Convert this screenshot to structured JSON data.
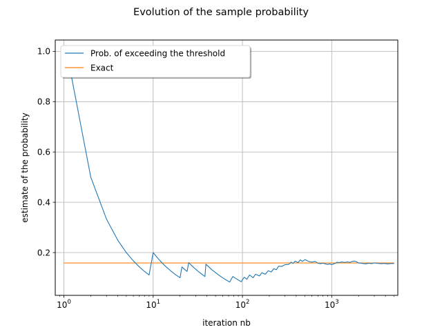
{
  "chart_data": {
    "type": "line",
    "title": "Evolution of the sample probability",
    "xlabel": "iteration nb",
    "ylabel": "estimate of the probability",
    "xscale": "log",
    "xlim": [
      0.8,
      5500
    ],
    "ylim": [
      0.03,
      1.045
    ],
    "grid": true,
    "legend_position": "top-left",
    "xticks": [
      {
        "value": 1,
        "base": "10",
        "exp": "0"
      },
      {
        "value": 10,
        "base": "10",
        "exp": "1"
      },
      {
        "value": 100,
        "base": "10",
        "exp": "2"
      },
      {
        "value": 1000,
        "base": "10",
        "exp": "3"
      }
    ],
    "yticks": [
      {
        "value": 0.2,
        "label": "0.2"
      },
      {
        "value": 0.4,
        "label": "0.4"
      },
      {
        "value": 0.6,
        "label": "0.6"
      },
      {
        "value": 0.8,
        "label": "0.8"
      },
      {
        "value": 1.0,
        "label": "1.0"
      }
    ],
    "series": [
      {
        "name": "Prob. of exceeding the threshold",
        "color": "#1f77b4",
        "points": [
          [
            1,
            0.91
          ],
          [
            1.2,
            0.91
          ],
          [
            2,
            0.5
          ],
          [
            3,
            0.333
          ],
          [
            4,
            0.25
          ],
          [
            5,
            0.2
          ],
          [
            6,
            0.167
          ],
          [
            7,
            0.143
          ],
          [
            8,
            0.125
          ],
          [
            9,
            0.111
          ],
          [
            10,
            0.2
          ],
          [
            11,
            0.182
          ],
          [
            12,
            0.167
          ],
          [
            13,
            0.154
          ],
          [
            14,
            0.143
          ],
          [
            16,
            0.125
          ],
          [
            18,
            0.111
          ],
          [
            20,
            0.1
          ],
          [
            21,
            0.143
          ],
          [
            23,
            0.13
          ],
          [
            24,
            0.125
          ],
          [
            25,
            0.16
          ],
          [
            28,
            0.143
          ],
          [
            32,
            0.125
          ],
          [
            36,
            0.111
          ],
          [
            38,
            0.105
          ],
          [
            39,
            0.154
          ],
          [
            45,
            0.133
          ],
          [
            55,
            0.109
          ],
          [
            65,
            0.092
          ],
          [
            72,
            0.083
          ],
          [
            78,
            0.105
          ],
          [
            88,
            0.093
          ],
          [
            97,
            0.084
          ],
          [
            99,
            0.09
          ],
          [
            105,
            0.102
          ],
          [
            112,
            0.094
          ],
          [
            120,
            0.111
          ],
          [
            132,
            0.1
          ],
          [
            140,
            0.114
          ],
          [
            155,
            0.107
          ],
          [
            165,
            0.12
          ],
          [
            180,
            0.114
          ],
          [
            195,
            0.128
          ],
          [
            210,
            0.123
          ],
          [
            225,
            0.136
          ],
          [
            240,
            0.132
          ],
          [
            255,
            0.146
          ],
          [
            275,
            0.145
          ],
          [
            300,
            0.152
          ],
          [
            330,
            0.153
          ],
          [
            350,
            0.162
          ],
          [
            370,
            0.157
          ],
          [
            390,
            0.166
          ],
          [
            420,
            0.16
          ],
          [
            445,
            0.171
          ],
          [
            470,
            0.165
          ],
          [
            500,
            0.172
          ],
          [
            530,
            0.168
          ],
          [
            560,
            0.164
          ],
          [
            600,
            0.162
          ],
          [
            650,
            0.165
          ],
          [
            700,
            0.158
          ],
          [
            750,
            0.156
          ],
          [
            800,
            0.158
          ],
          [
            850,
            0.155
          ],
          [
            900,
            0.153
          ],
          [
            950,
            0.155
          ],
          [
            1000,
            0.152
          ],
          [
            1050,
            0.155
          ],
          [
            1100,
            0.158
          ],
          [
            1150,
            0.162
          ],
          [
            1200,
            0.16
          ],
          [
            1300,
            0.163
          ],
          [
            1400,
            0.161
          ],
          [
            1500,
            0.163
          ],
          [
            1600,
            0.161
          ],
          [
            1700,
            0.165
          ],
          [
            1800,
            0.166
          ],
          [
            1900,
            0.163
          ],
          [
            2000,
            0.159
          ],
          [
            2200,
            0.157
          ],
          [
            2400,
            0.155
          ],
          [
            2600,
            0.158
          ],
          [
            2800,
            0.156
          ],
          [
            3000,
            0.159
          ],
          [
            3300,
            0.157
          ],
          [
            3600,
            0.156
          ],
          [
            3900,
            0.157
          ],
          [
            4200,
            0.155
          ],
          [
            4500,
            0.156
          ],
          [
            4800,
            0.157
          ],
          [
            5000,
            0.156
          ]
        ]
      },
      {
        "name": "Exact",
        "color": "#ff7f0e",
        "points": [
          [
            1,
            0.1587
          ],
          [
            5000,
            0.1587
          ]
        ]
      }
    ]
  }
}
